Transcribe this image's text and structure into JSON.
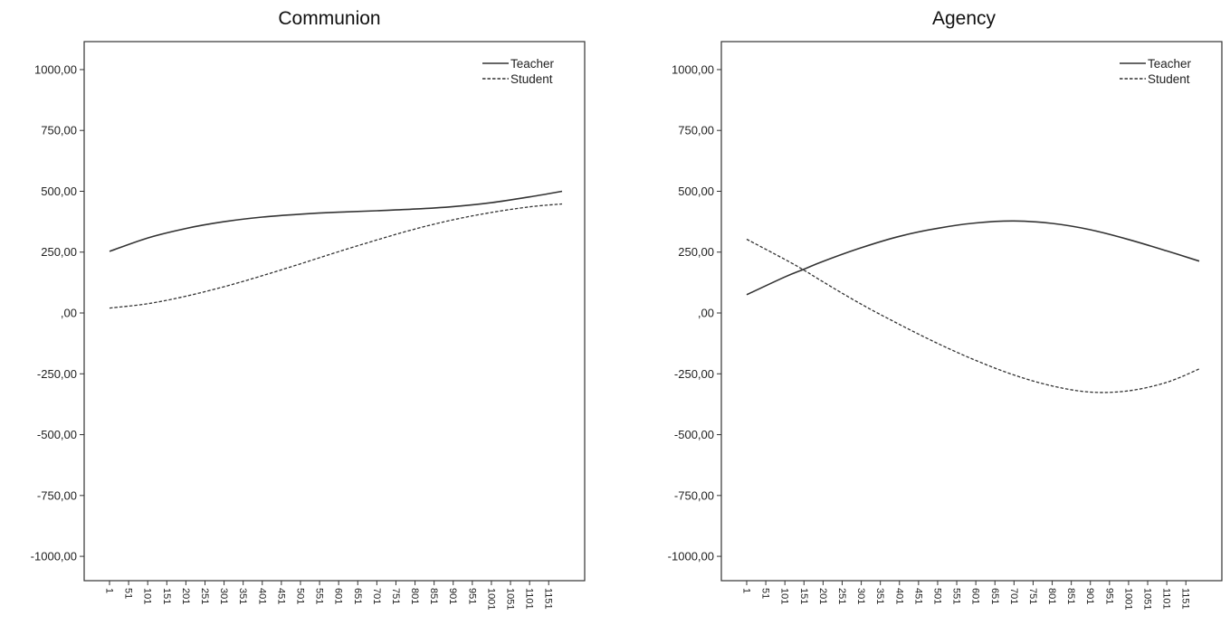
{
  "chart_data": [
    {
      "type": "line",
      "title": "Communion",
      "xlabel": "",
      "ylabel": "",
      "x_tick_labels": [
        "1",
        "51",
        "101",
        "151",
        "201",
        "251",
        "301",
        "351",
        "401",
        "451",
        "501",
        "551",
        "601",
        "651",
        "701",
        "751",
        "801",
        "851",
        "901",
        "951",
        "1001",
        "1051",
        "1101",
        "1151"
      ],
      "y_tick_labels": [
        "1000,00",
        "750,00",
        "500,00",
        "250,00",
        ",00",
        "-250,00",
        "-500,00",
        "-750,00",
        "-1000,00"
      ],
      "y_ticks": [
        1000,
        750,
        500,
        250,
        0,
        -250,
        -500,
        -750,
        -1000
      ],
      "xlim": [
        1,
        1186
      ],
      "ylim": [
        -1100,
        1115
      ],
      "grid": false,
      "legend": "top-right",
      "x": [
        1,
        101,
        201,
        301,
        401,
        501,
        601,
        701,
        801,
        901,
        1001,
        1101,
        1186
      ],
      "series": [
        {
          "name": "Teacher",
          "style": "solid",
          "values": [
            253,
            308,
            347,
            375,
            394,
            406,
            414,
            420,
            427,
            437,
            453,
            477,
            500
          ]
        },
        {
          "name": "Student",
          "style": "dashed",
          "values": [
            20,
            38,
            69,
            108,
            153,
            202,
            252,
            300,
            345,
            383,
            413,
            436,
            448
          ]
        }
      ]
    },
    {
      "type": "line",
      "title": "Agency",
      "xlabel": "",
      "ylabel": "",
      "x_tick_labels": [
        "1",
        "51",
        "101",
        "151",
        "201",
        "251",
        "301",
        "351",
        "401",
        "451",
        "501",
        "551",
        "601",
        "651",
        "701",
        "751",
        "801",
        "851",
        "901",
        "951",
        "1001",
        "1051",
        "1101",
        "1151"
      ],
      "y_tick_labels": [
        "1000,00",
        "750,00",
        "500,00",
        "250,00",
        ",00",
        "-250,00",
        "-500,00",
        "-750,00",
        "-1000,00"
      ],
      "y_ticks": [
        1000,
        750,
        500,
        250,
        0,
        -250,
        -500,
        -750,
        -1000
      ],
      "xlim": [
        1,
        1186
      ],
      "ylim": [
        -1100,
        1115
      ],
      "grid": false,
      "legend": "top-right",
      "x": [
        1,
        101,
        151,
        201,
        301,
        401,
        501,
        601,
        701,
        801,
        901,
        1001,
        1101,
        1186
      ],
      "series": [
        {
          "name": "Teacher",
          "style": "solid",
          "values": [
            75,
            148,
            180,
            212,
            268,
            315,
            348,
            370,
            378,
            368,
            342,
            302,
            255,
            213
          ]
        },
        {
          "name": "Student",
          "style": "dashed",
          "values": [
            303,
            220,
            176,
            128,
            36,
            -47,
            -125,
            -195,
            -255,
            -300,
            -325,
            -320,
            -285,
            -230
          ]
        }
      ]
    }
  ]
}
